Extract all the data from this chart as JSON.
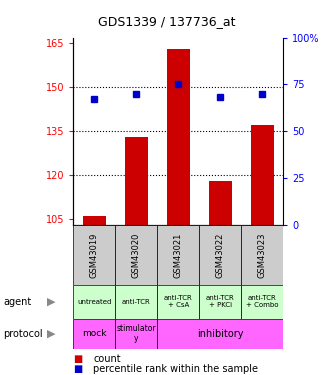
{
  "title": "GDS1339 / 137736_at",
  "samples": [
    "GSM43019",
    "GSM43020",
    "GSM43021",
    "GSM43022",
    "GSM43023"
  ],
  "counts": [
    106,
    133,
    163,
    118,
    137
  ],
  "percentiles": [
    67,
    70,
    75,
    68,
    70
  ],
  "ylim_left": [
    103,
    167
  ],
  "ylim_right": [
    0,
    100
  ],
  "yticks_left": [
    105,
    120,
    135,
    150,
    165
  ],
  "yticks_right": [
    0,
    25,
    50,
    75,
    100
  ],
  "bar_color": "#cc0000",
  "marker_color": "#0000cc",
  "agent_labels": [
    "untreated",
    "anti-TCR",
    "anti-TCR\n+ CsA",
    "anti-TCR\n+ PKCi",
    "anti-TCR\n+ Combo"
  ],
  "agent_bg": "#ccffcc",
  "protocol_bg": "#ff66ff",
  "sample_bg_color": "#cccccc",
  "legend_count_color": "#cc0000",
  "legend_pct_color": "#0000cc",
  "grid_dotted_at": [
    120,
    135,
    150
  ]
}
